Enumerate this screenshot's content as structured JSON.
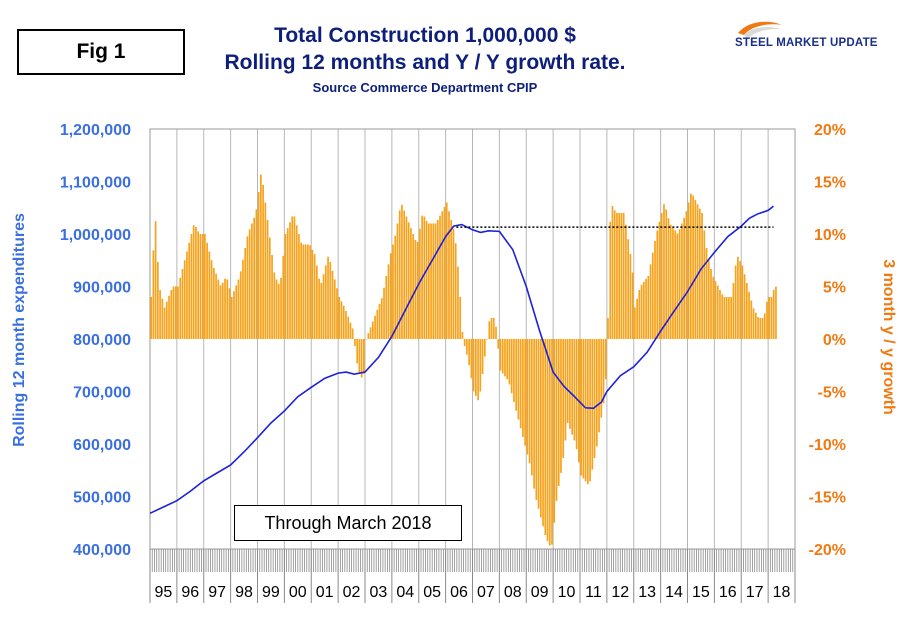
{
  "figure_label": "Fig 1",
  "title_line1": "Total Construction 1,000,000 $",
  "title_line2": "Rolling 12 months and Y / Y growth rate.",
  "source_line": "Source Commerce Department CPIP",
  "logo_text": "STEEL MARKET UPDATE",
  "annotation": "Through March 2018",
  "colors": {
    "title": "#0d1f7a",
    "line": "#1e22d6",
    "bars": "#f7a21b",
    "left_axis": "#3a6fe0",
    "right_axis": "#f07a12",
    "reference_line": "#000000"
  },
  "chart_data": {
    "type": "bar+line",
    "x_labels": [
      "95",
      "96",
      "97",
      "98",
      "99",
      "00",
      "01",
      "02",
      "03",
      "04",
      "05",
      "06",
      "07",
      "08",
      "09",
      "10",
      "11",
      "12",
      "13",
      "14",
      "15",
      "16",
      "17",
      "18"
    ],
    "left_axis": {
      "label": "Rolling 12 month expenditures",
      "ylim": [
        400000,
        1200000
      ],
      "ticks": [
        "400,000",
        "500,000",
        "600,000",
        "700,000",
        "800,000",
        "900,000",
        "1,000,000",
        "1,100,000",
        "1,200,000"
      ]
    },
    "right_axis": {
      "label": "3 month y / y growth",
      "ylim": [
        -20,
        20
      ],
      "ticks": [
        "-20%",
        "-15%",
        "-10%",
        "-5%",
        "0%",
        "5%",
        "10%",
        "15%",
        "20%"
      ]
    },
    "reference_line": {
      "value": 1013000,
      "start_year": 2006.4,
      "end_year": 2018.2,
      "style": "dotted"
    },
    "grid": "vertical",
    "series": [
      {
        "kind": "line",
        "axis": "left",
        "points": [
          [
            1995.0,
            468000
          ],
          [
            1995.5,
            480000
          ],
          [
            1996.0,
            492000
          ],
          [
            1996.5,
            510000
          ],
          [
            1997.0,
            530000
          ],
          [
            1997.5,
            545000
          ],
          [
            1998.0,
            560000
          ],
          [
            1998.5,
            585000
          ],
          [
            1999.0,
            612000
          ],
          [
            1999.5,
            640000
          ],
          [
            2000.0,
            663000
          ],
          [
            2000.5,
            690000
          ],
          [
            2001.0,
            708000
          ],
          [
            2001.5,
            725000
          ],
          [
            2002.0,
            735000
          ],
          [
            2002.3,
            737000
          ],
          [
            2002.6,
            733000
          ],
          [
            2003.0,
            737000
          ],
          [
            2003.5,
            765000
          ],
          [
            2004.0,
            805000
          ],
          [
            2004.5,
            855000
          ],
          [
            2005.0,
            905000
          ],
          [
            2005.5,
            950000
          ],
          [
            2006.0,
            995000
          ],
          [
            2006.3,
            1015000
          ],
          [
            2006.6,
            1018000
          ],
          [
            2007.0,
            1008000
          ],
          [
            2007.3,
            1003000
          ],
          [
            2007.6,
            1006000
          ],
          [
            2008.0,
            1005000
          ],
          [
            2008.5,
            970000
          ],
          [
            2009.0,
            900000
          ],
          [
            2009.5,
            815000
          ],
          [
            2010.0,
            737000
          ],
          [
            2010.4,
            710000
          ],
          [
            2010.8,
            690000
          ],
          [
            2011.2,
            669000
          ],
          [
            2011.5,
            668000
          ],
          [
            2011.8,
            680000
          ],
          [
            2012.0,
            700000
          ],
          [
            2012.5,
            730000
          ],
          [
            2013.0,
            747000
          ],
          [
            2013.5,
            775000
          ],
          [
            2014.0,
            815000
          ],
          [
            2014.5,
            853000
          ],
          [
            2015.0,
            890000
          ],
          [
            2015.5,
            933000
          ],
          [
            2016.0,
            965000
          ],
          [
            2016.5,
            995000
          ],
          [
            2017.0,
            1015000
          ],
          [
            2017.3,
            1030000
          ],
          [
            2017.6,
            1038000
          ],
          [
            2018.0,
            1045000
          ],
          [
            2018.2,
            1053000
          ]
        ]
      },
      {
        "kind": "bar",
        "axis": "right",
        "anchors": [
          [
            1995.0,
            4
          ],
          [
            1995.15,
            12
          ],
          [
            1995.3,
            5
          ],
          [
            1995.5,
            3
          ],
          [
            1995.8,
            5
          ],
          [
            1996.0,
            5
          ],
          [
            1996.3,
            8
          ],
          [
            1996.6,
            11
          ],
          [
            1996.8,
            10
          ],
          [
            1997.0,
            10
          ],
          [
            1997.3,
            7
          ],
          [
            1997.6,
            5
          ],
          [
            1997.8,
            6
          ],
          [
            1998.0,
            4
          ],
          [
            1998.3,
            6
          ],
          [
            1998.6,
            10
          ],
          [
            1998.9,
            12
          ],
          [
            1999.1,
            16
          ],
          [
            1999.3,
            12
          ],
          [
            1999.6,
            6
          ],
          [
            1999.8,
            5
          ],
          [
            2000.0,
            10
          ],
          [
            2000.3,
            12
          ],
          [
            2000.6,
            9
          ],
          [
            2000.9,
            9
          ],
          [
            2001.1,
            8
          ],
          [
            2001.3,
            5
          ],
          [
            2001.6,
            8
          ],
          [
            2001.9,
            5
          ],
          [
            2002.0,
            4
          ],
          [
            2002.2,
            3
          ],
          [
            2002.5,
            1
          ],
          [
            2002.7,
            -3
          ],
          [
            2002.9,
            -4
          ],
          [
            2003.0,
            0
          ],
          [
            2003.3,
            2
          ],
          [
            2003.6,
            4
          ],
          [
            2003.9,
            8
          ],
          [
            2004.1,
            10
          ],
          [
            2004.3,
            13
          ],
          [
            2004.6,
            11
          ],
          [
            2004.9,
            9
          ],
          [
            2005.1,
            12
          ],
          [
            2005.3,
            11
          ],
          [
            2005.6,
            11
          ],
          [
            2005.8,
            12
          ],
          [
            2006.0,
            13
          ],
          [
            2006.3,
            10
          ],
          [
            2006.45,
            6
          ],
          [
            2006.6,
            0
          ],
          [
            2006.8,
            -2
          ],
          [
            2007.0,
            -5
          ],
          [
            2007.2,
            -6
          ],
          [
            2007.4,
            -2
          ],
          [
            2007.6,
            2
          ],
          [
            2007.8,
            2
          ],
          [
            2008.0,
            -3
          ],
          [
            2008.3,
            -4
          ],
          [
            2008.6,
            -7
          ],
          [
            2008.9,
            -10
          ],
          [
            2009.1,
            -12
          ],
          [
            2009.3,
            -15
          ],
          [
            2009.5,
            -17
          ],
          [
            2009.7,
            -19
          ],
          [
            2009.9,
            -20
          ],
          [
            2010.1,
            -15
          ],
          [
            2010.3,
            -12
          ],
          [
            2010.5,
            -8
          ],
          [
            2010.8,
            -10
          ],
          [
            2011.0,
            -13
          ],
          [
            2011.3,
            -14
          ],
          [
            2011.6,
            -10
          ],
          [
            2011.9,
            -5
          ],
          [
            2012.0,
            2
          ],
          [
            2012.1,
            13
          ],
          [
            2012.3,
            12
          ],
          [
            2012.6,
            12
          ],
          [
            2012.9,
            7
          ],
          [
            2013.0,
            3
          ],
          [
            2013.2,
            5
          ],
          [
            2013.5,
            6
          ],
          [
            2013.8,
            10
          ],
          [
            2014.1,
            13
          ],
          [
            2014.3,
            11
          ],
          [
            2014.6,
            10
          ],
          [
            2014.9,
            12
          ],
          [
            2015.1,
            14
          ],
          [
            2015.3,
            13
          ],
          [
            2015.5,
            12
          ],
          [
            2015.7,
            8
          ],
          [
            2015.9,
            6
          ],
          [
            2016.1,
            5
          ],
          [
            2016.3,
            4
          ],
          [
            2016.6,
            4
          ],
          [
            2016.8,
            8
          ],
          [
            2017.0,
            7
          ],
          [
            2017.2,
            5
          ],
          [
            2017.4,
            3
          ],
          [
            2017.6,
            2
          ],
          [
            2017.8,
            2
          ],
          [
            2017.95,
            4
          ],
          [
            2018.1,
            4
          ],
          [
            2018.2,
            5
          ]
        ]
      }
    ]
  }
}
